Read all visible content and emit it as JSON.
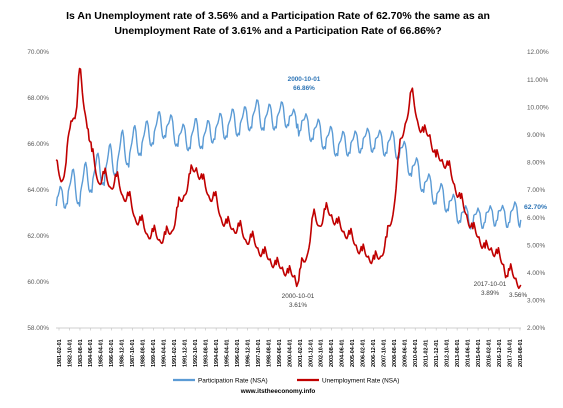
{
  "chart_data": {
    "type": "line",
    "title": [
      "Is An Unemployment rate of 3.56% and a Participation Rate of 62.70% the same as an",
      "Unemployment Rate of 3.61% and a Participation Rate of 66.86%?"
    ],
    "left_axis": {
      "range": [
        58,
        70
      ],
      "ticks": [
        "58.00%",
        "60.00%",
        "62.00%",
        "64.00%",
        "66.00%",
        "68.00%",
        "70.00%"
      ]
    },
    "right_axis": {
      "range": [
        2,
        12
      ],
      "ticks": [
        "2.00%",
        "3.00%",
        "4.00%",
        "5.00%",
        "6.00%",
        "7.00%",
        "8.00%",
        "9.00%",
        "10.00%",
        "11.00%",
        "12.00%"
      ]
    },
    "x_range": [
      1981.08,
      2018.92
    ],
    "x_tick_labels": [
      "1981-02-01",
      "1982-10-01",
      "1983-08-01",
      "1984-06-01",
      "1985-04-01",
      "1986-02-01",
      "1986-12-01",
      "1987-10-01",
      "1988-08-01",
      "1989-06-01",
      "1990-04-01",
      "1991-02-01",
      "1991-12-01",
      "1992-10-01",
      "1993-08-01",
      "1994-06-01",
      "1995-04-01",
      "1996-02-01",
      "1996-12-01",
      "1997-10-01",
      "1998-08-01",
      "1999-06-01",
      "2000-04-01",
      "2001-02-01",
      "2001-12-01",
      "2002-10-01",
      "2003-08-01",
      "2004-06-01",
      "2005-04-01",
      "2006-02-01",
      "2006-12-01",
      "2007-10-01",
      "2008-08-01",
      "2009-06-01",
      "2010-04-01",
      "2011-02-01",
      "2011-12-01",
      "2012-10-01",
      "2013-08-01",
      "2014-06-01",
      "2015-04-01",
      "2016-02-01",
      "2016-12-01",
      "2017-10-01",
      "2018-08-01"
    ],
    "series": [
      {
        "name": "Participation Rate (NSA)",
        "axis": "left",
        "color": "#5b9bd5",
        "points": [
          [
            1981.1,
            63.3
          ],
          [
            1981.5,
            64.1
          ],
          [
            1982.0,
            63.4
          ],
          [
            1982.5,
            64.9
          ],
          [
            1983.0,
            63.3
          ],
          [
            1983.5,
            65.2
          ],
          [
            1984.0,
            63.9
          ],
          [
            1984.5,
            65.6
          ],
          [
            1985.0,
            64.2
          ],
          [
            1985.5,
            66.0
          ],
          [
            1986.0,
            64.6
          ],
          [
            1986.5,
            66.6
          ],
          [
            1987.0,
            65.0
          ],
          [
            1987.5,
            66.8
          ],
          [
            1988.0,
            65.5
          ],
          [
            1988.5,
            67.0
          ],
          [
            1989.0,
            66.0
          ],
          [
            1989.5,
            67.4
          ],
          [
            1990.0,
            66.3
          ],
          [
            1990.5,
            67.2
          ],
          [
            1991.0,
            65.9
          ],
          [
            1991.5,
            66.8
          ],
          [
            1992.0,
            65.8
          ],
          [
            1992.5,
            67.1
          ],
          [
            1993.0,
            65.8
          ],
          [
            1993.5,
            67.0
          ],
          [
            1994.0,
            66.2
          ],
          [
            1994.5,
            67.3
          ],
          [
            1995.0,
            66.3
          ],
          [
            1995.5,
            67.5
          ],
          [
            1996.0,
            66.4
          ],
          [
            1996.5,
            67.6
          ],
          [
            1997.0,
            66.7
          ],
          [
            1997.5,
            67.9
          ],
          [
            1998.0,
            66.6
          ],
          [
            1998.5,
            67.7
          ],
          [
            1999.0,
            66.7
          ],
          [
            1999.5,
            67.8
          ],
          [
            2000.0,
            66.8
          ],
          [
            2000.5,
            67.4
          ],
          [
            2000.75,
            66.86
          ],
          [
            2001.0,
            66.6
          ],
          [
            2001.5,
            67.2
          ],
          [
            2002.0,
            66.2
          ],
          [
            2002.5,
            67.0
          ],
          [
            2003.0,
            65.8
          ],
          [
            2003.5,
            66.7
          ],
          [
            2004.0,
            65.5
          ],
          [
            2004.5,
            66.5
          ],
          [
            2005.0,
            65.6
          ],
          [
            2005.5,
            66.5
          ],
          [
            2006.0,
            65.8
          ],
          [
            2006.5,
            66.6
          ],
          [
            2007.0,
            65.8
          ],
          [
            2007.5,
            66.5
          ],
          [
            2008.0,
            65.6
          ],
          [
            2008.5,
            66.5
          ],
          [
            2009.0,
            65.4
          ],
          [
            2009.5,
            66.0
          ],
          [
            2010.0,
            64.6
          ],
          [
            2010.5,
            65.3
          ],
          [
            2011.0,
            63.9
          ],
          [
            2011.5,
            64.6
          ],
          [
            2012.0,
            63.4
          ],
          [
            2012.5,
            64.2
          ],
          [
            2013.0,
            63.1
          ],
          [
            2013.5,
            63.7
          ],
          [
            2014.0,
            62.6
          ],
          [
            2014.5,
            63.2
          ],
          [
            2015.0,
            62.5
          ],
          [
            2015.5,
            63.1
          ],
          [
            2016.0,
            62.6
          ],
          [
            2016.5,
            63.2
          ],
          [
            2017.0,
            62.7
          ],
          [
            2017.5,
            63.2
          ],
          [
            2018.0,
            62.6
          ],
          [
            2018.5,
            63.4
          ],
          [
            2018.9,
            62.7
          ]
        ]
      },
      {
        "name": "Unemployment Rate (NSA)",
        "axis": "right",
        "color": "#c00000",
        "points": [
          [
            1981.1,
            8.1
          ],
          [
            1981.5,
            7.3
          ],
          [
            1981.9,
            8.0
          ],
          [
            1982.3,
            9.5
          ],
          [
            1982.7,
            9.8
          ],
          [
            1983.0,
            11.4
          ],
          [
            1983.3,
            10.2
          ],
          [
            1983.7,
            9.2
          ],
          [
            1984.0,
            8.4
          ],
          [
            1984.5,
            7.3
          ],
          [
            1985.0,
            7.6
          ],
          [
            1985.5,
            7.1
          ],
          [
            1986.0,
            7.5
          ],
          [
            1986.5,
            6.8
          ],
          [
            1987.0,
            6.8
          ],
          [
            1987.5,
            6.0
          ],
          [
            1988.0,
            5.9
          ],
          [
            1988.5,
            5.4
          ],
          [
            1989.0,
            5.5
          ],
          [
            1989.5,
            5.2
          ],
          [
            1990.0,
            5.4
          ],
          [
            1990.5,
            5.5
          ],
          [
            1991.0,
            6.4
          ],
          [
            1991.5,
            6.8
          ],
          [
            1992.0,
            7.6
          ],
          [
            1992.5,
            7.8
          ],
          [
            1993.0,
            7.4
          ],
          [
            1993.5,
            6.8
          ],
          [
            1994.0,
            6.8
          ],
          [
            1994.5,
            6.0
          ],
          [
            1995.0,
            5.8
          ],
          [
            1995.5,
            5.6
          ],
          [
            1996.0,
            5.7
          ],
          [
            1996.5,
            5.2
          ],
          [
            1997.0,
            5.3
          ],
          [
            1997.5,
            4.9
          ],
          [
            1998.0,
            4.7
          ],
          [
            1998.5,
            4.5
          ],
          [
            1999.0,
            4.3
          ],
          [
            1999.5,
            4.2
          ],
          [
            2000.0,
            4.0
          ],
          [
            2000.5,
            3.9
          ],
          [
            2000.75,
            3.61
          ],
          [
            2001.0,
            4.2
          ],
          [
            2001.5,
            4.6
          ],
          [
            2002.0,
            6.1
          ],
          [
            2002.5,
            5.7
          ],
          [
            2003.0,
            6.3
          ],
          [
            2003.5,
            6.1
          ],
          [
            2004.0,
            5.8
          ],
          [
            2004.5,
            5.5
          ],
          [
            2005.0,
            5.4
          ],
          [
            2005.5,
            5.0
          ],
          [
            2006.0,
            4.8
          ],
          [
            2006.5,
            4.6
          ],
          [
            2007.0,
            4.5
          ],
          [
            2007.5,
            4.6
          ],
          [
            2008.0,
            5.3
          ],
          [
            2008.5,
            6.1
          ],
          [
            2009.0,
            8.4
          ],
          [
            2009.5,
            9.4
          ],
          [
            2010.0,
            10.6
          ],
          [
            2010.5,
            9.5
          ],
          [
            2011.0,
            9.1
          ],
          [
            2011.5,
            9.0
          ],
          [
            2012.0,
            8.2
          ],
          [
            2012.5,
            8.1
          ],
          [
            2013.0,
            7.9
          ],
          [
            2013.5,
            7.2
          ],
          [
            2014.0,
            6.7
          ],
          [
            2014.5,
            6.1
          ],
          [
            2015.0,
            5.6
          ],
          [
            2015.5,
            5.3
          ],
          [
            2016.0,
            4.9
          ],
          [
            2016.5,
            4.9
          ],
          [
            2017.0,
            4.7
          ],
          [
            2017.5,
            4.3
          ],
          [
            2017.75,
            3.89
          ],
          [
            2018.0,
            4.1
          ],
          [
            2018.5,
            3.8
          ],
          [
            2018.9,
            3.56
          ]
        ]
      }
    ],
    "annotations": [
      {
        "text": "2000-10-01",
        "style": "blue"
      },
      {
        "text": "66.86%",
        "style": "blue"
      },
      {
        "text": "2000-10-01",
        "style": "black"
      },
      {
        "text": "3.61%",
        "style": "black"
      },
      {
        "text": "2017-10-01",
        "style": "black"
      },
      {
        "text": "3.89%",
        "style": "black"
      },
      {
        "text": "3.56%",
        "style": "black"
      },
      {
        "text": "62.70%",
        "style": "blue"
      }
    ],
    "legend_position": "bottom",
    "gridlines": false,
    "source_note": "www.itstheeconomy.info"
  }
}
